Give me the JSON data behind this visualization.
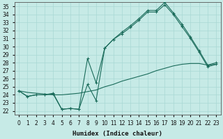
{
  "xlabel": "Humidex (Indice chaleur)",
  "xlim": [
    -0.5,
    23.5
  ],
  "ylim": [
    21.5,
    35.5
  ],
  "yticks": [
    22,
    23,
    24,
    25,
    26,
    27,
    28,
    29,
    30,
    31,
    32,
    33,
    34,
    35
  ],
  "xticks": [
    0,
    1,
    2,
    3,
    4,
    5,
    6,
    7,
    8,
    9,
    10,
    11,
    12,
    13,
    14,
    15,
    16,
    17,
    18,
    19,
    20,
    21,
    22,
    23
  ],
  "bg_color": "#c6eae6",
  "grid_color": "#a8d8d4",
  "line_color": "#1a6b5a",
  "line1_x": [
    0,
    1,
    2,
    3,
    4,
    5,
    6,
    7,
    8,
    9,
    10,
    11,
    12,
    13,
    14,
    15,
    16,
    17,
    18,
    19,
    20,
    21,
    22,
    23
  ],
  "line1_y": [
    24.5,
    23.8,
    24.0,
    24.0,
    24.1,
    22.2,
    22.3,
    22.2,
    25.3,
    23.3,
    29.8,
    30.9,
    31.6,
    32.4,
    33.3,
    34.3,
    34.3,
    35.2,
    34.0,
    32.5,
    31.0,
    29.3,
    27.5,
    27.8
  ],
  "line2_x": [
    0,
    1,
    2,
    3,
    4,
    5,
    6,
    7,
    8,
    9,
    10,
    11,
    12,
    13,
    14,
    15,
    16,
    17,
    18,
    19,
    20,
    21,
    22,
    23
  ],
  "line2_y": [
    24.5,
    23.8,
    24.0,
    24.0,
    24.2,
    22.2,
    22.3,
    22.2,
    28.5,
    25.5,
    29.8,
    30.9,
    31.8,
    32.6,
    33.5,
    34.5,
    34.5,
    35.5,
    34.2,
    32.8,
    31.2,
    29.5,
    27.7,
    28.0
  ],
  "line3_x": [
    0,
    1,
    2,
    3,
    4,
    5,
    6,
    7,
    8,
    9,
    10,
    11,
    12,
    13,
    14,
    15,
    16,
    17,
    18,
    19,
    20,
    21,
    22,
    23
  ],
  "line3_y": [
    24.5,
    24.3,
    24.2,
    24.1,
    24.0,
    24.0,
    24.1,
    24.2,
    24.4,
    24.6,
    25.0,
    25.3,
    25.7,
    26.0,
    26.3,
    26.6,
    27.0,
    27.3,
    27.6,
    27.8,
    27.9,
    27.9,
    27.7,
    27.8
  ]
}
